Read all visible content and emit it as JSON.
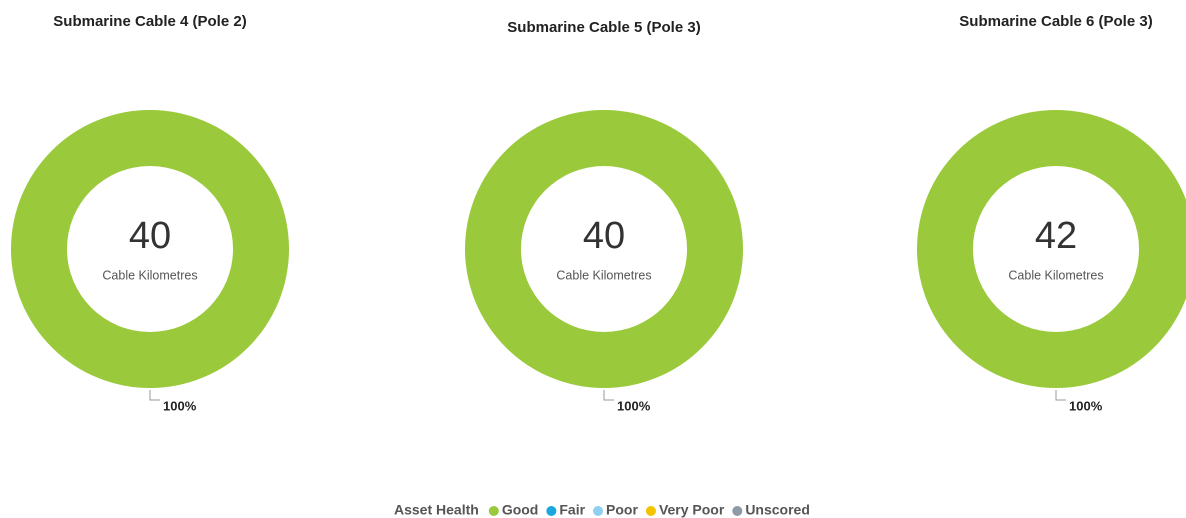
{
  "chart_data": [
    {
      "type": "donut",
      "title": "Submarine Cable 4 (Pole 2)",
      "categories": [
        "Good"
      ],
      "values": [
        100
      ],
      "value_labels": [
        "100%"
      ],
      "colors": [
        "#9bc93c"
      ],
      "center_value": 40,
      "center_label": "Cable Kilometres"
    },
    {
      "type": "donut",
      "title": "Submarine Cable 5 (Pole 3)",
      "categories": [
        "Good"
      ],
      "values": [
        100
      ],
      "value_labels": [
        "100%"
      ],
      "colors": [
        "#9bc93c"
      ],
      "center_value": 40,
      "center_label": "Cable Kilometres"
    },
    {
      "type": "donut",
      "title": "Submarine Cable 6 (Pole 3)",
      "categories": [
        "Good"
      ],
      "values": [
        100
      ],
      "value_labels": [
        "100%"
      ],
      "colors": [
        "#9bc93c"
      ],
      "center_value": 42,
      "center_label": "Cable Kilometres"
    }
  ],
  "legend": {
    "title": "Asset Health",
    "items": [
      {
        "name": "Good",
        "color": "#9bc93c"
      },
      {
        "name": "Fair",
        "color": "#1aa7e0"
      },
      {
        "name": "Poor",
        "color": "#8fd0ef"
      },
      {
        "name": "Very Poor",
        "color": "#f5c400"
      },
      {
        "name": "Unscored",
        "color": "#8e9aa6"
      }
    ]
  }
}
